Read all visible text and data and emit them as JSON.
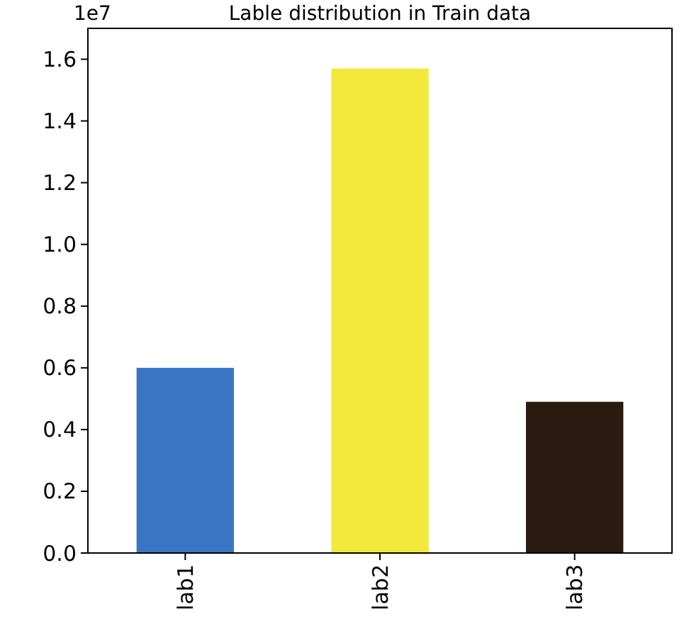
{
  "chart_data": {
    "type": "bar",
    "title": "Lable distribution in Train data",
    "categories": [
      "lab1",
      "lab2",
      "lab3"
    ],
    "values": [
      0.6,
      1.57,
      0.49
    ],
    "colors": [
      "#3a75c4",
      "#f3e93c",
      "#2a1a10"
    ],
    "ylim": [
      0,
      1.7
    ],
    "yticks": [
      {
        "value": 0,
        "label": "0.0"
      },
      {
        "value": 0.2,
        "label": "0.2"
      },
      {
        "value": 0.4,
        "label": "0.4"
      },
      {
        "value": 0.6,
        "label": "0.6"
      },
      {
        "value": 0.8,
        "label": "0.8"
      },
      {
        "value": 1,
        "label": "1.0"
      },
      {
        "value": 1.2,
        "label": "1.2"
      },
      {
        "value": 1.4,
        "label": "1.4"
      },
      {
        "value": 1.6,
        "label": "1.6"
      }
    ],
    "annotations": [
      "1e7"
    ],
    "grid": false
  }
}
